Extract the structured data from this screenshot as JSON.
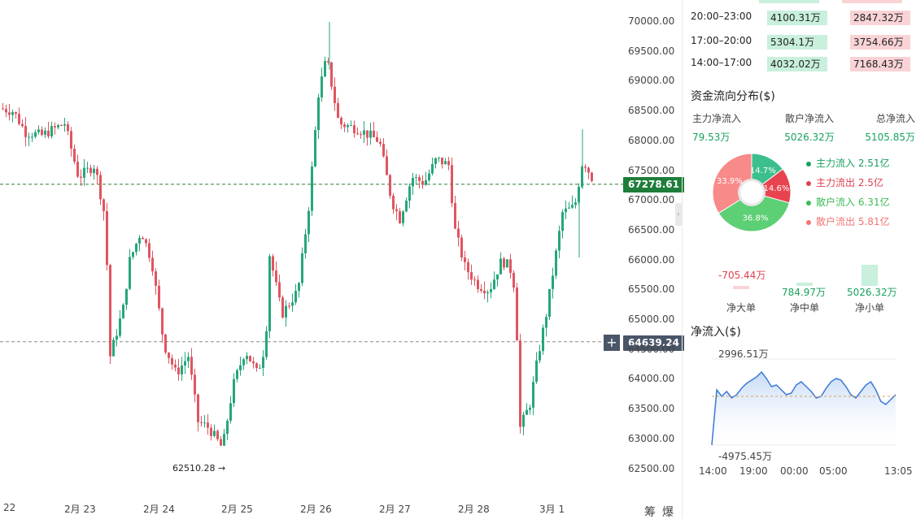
{
  "chart": {
    "price_axis": [
      "70000.00",
      "69500.00",
      "69000.00",
      "68500.00",
      "68000.00",
      "67500.00",
      "67000.00",
      "66500.00",
      "66000.00",
      "65500.00",
      "65000.00",
      "64500.00",
      "64000.00",
      "63500.00",
      "63000.00",
      "62500.00"
    ],
    "date_axis": [
      "22",
      "2月 23",
      "2月 24",
      "2月 25",
      "2月 26",
      "2月 27",
      "2月 28",
      "3月 1"
    ],
    "current_price": "67278.61",
    "crosshair_price": "64639.24",
    "low_marker": "62510.28",
    "low_arrow": "→",
    "corner_labels": [
      "筹",
      "爆"
    ],
    "colors": {
      "up": "#26a67a",
      "down": "#e05561",
      "current_tag": "#1e7d3a",
      "crosshair_tag": "#4a5568"
    }
  },
  "side": {
    "timeframes": [
      {
        "time": "20:00–23:00",
        "inflow": "4100.31万",
        "outflow": "2847.32万"
      },
      {
        "time": "17:00–20:00",
        "inflow": "5304.1万",
        "outflow": "3754.66万"
      },
      {
        "time": "14:00–17:00",
        "inflow": "4032.02万",
        "outflow": "7168.43万"
      }
    ],
    "dist_title": "资金流向分布($)",
    "flow_cols": [
      {
        "label": "主力净流入",
        "value": "79.53万"
      },
      {
        "label": "散户净流入",
        "value": "5026.32万"
      },
      {
        "label": "总净流入",
        "value": "5105.85万"
      }
    ],
    "pie": [
      {
        "label": "14.7%",
        "value": 14.7,
        "color": "#3cbf8c"
      },
      {
        "label": "14.6%",
        "value": 14.6,
        "color": "#e8444f"
      },
      {
        "label": "36.8%",
        "value": 36.8,
        "color": "#5dcf74"
      },
      {
        "label": "33.9%",
        "value": 33.9,
        "color": "#f98a8a"
      }
    ],
    "legend": [
      {
        "text": "主力流入 2.51亿",
        "color": "#19a15f"
      },
      {
        "text": "主力流出 2.5亿",
        "color": "#e04050"
      },
      {
        "text": "散户流入 6.31亿",
        "color": "#3dbb56"
      },
      {
        "text": "散户流出 5.81亿",
        "color": "#f27474"
      }
    ],
    "net_bars": [
      {
        "value": "-705.44万",
        "cat": "净大单",
        "amount": -705.44
      },
      {
        "value": "784.97万",
        "cat": "净中单",
        "amount": 784.97
      },
      {
        "value": "5026.32万",
        "cat": "净小单",
        "amount": 5026.32
      }
    ],
    "net_title": "净流入($)",
    "net_max": "2996.51万",
    "net_min": "-4975.45万",
    "net_times": [
      "14:00",
      "19:00",
      "00:00",
      "05:00",
      "13:05"
    ]
  }
}
